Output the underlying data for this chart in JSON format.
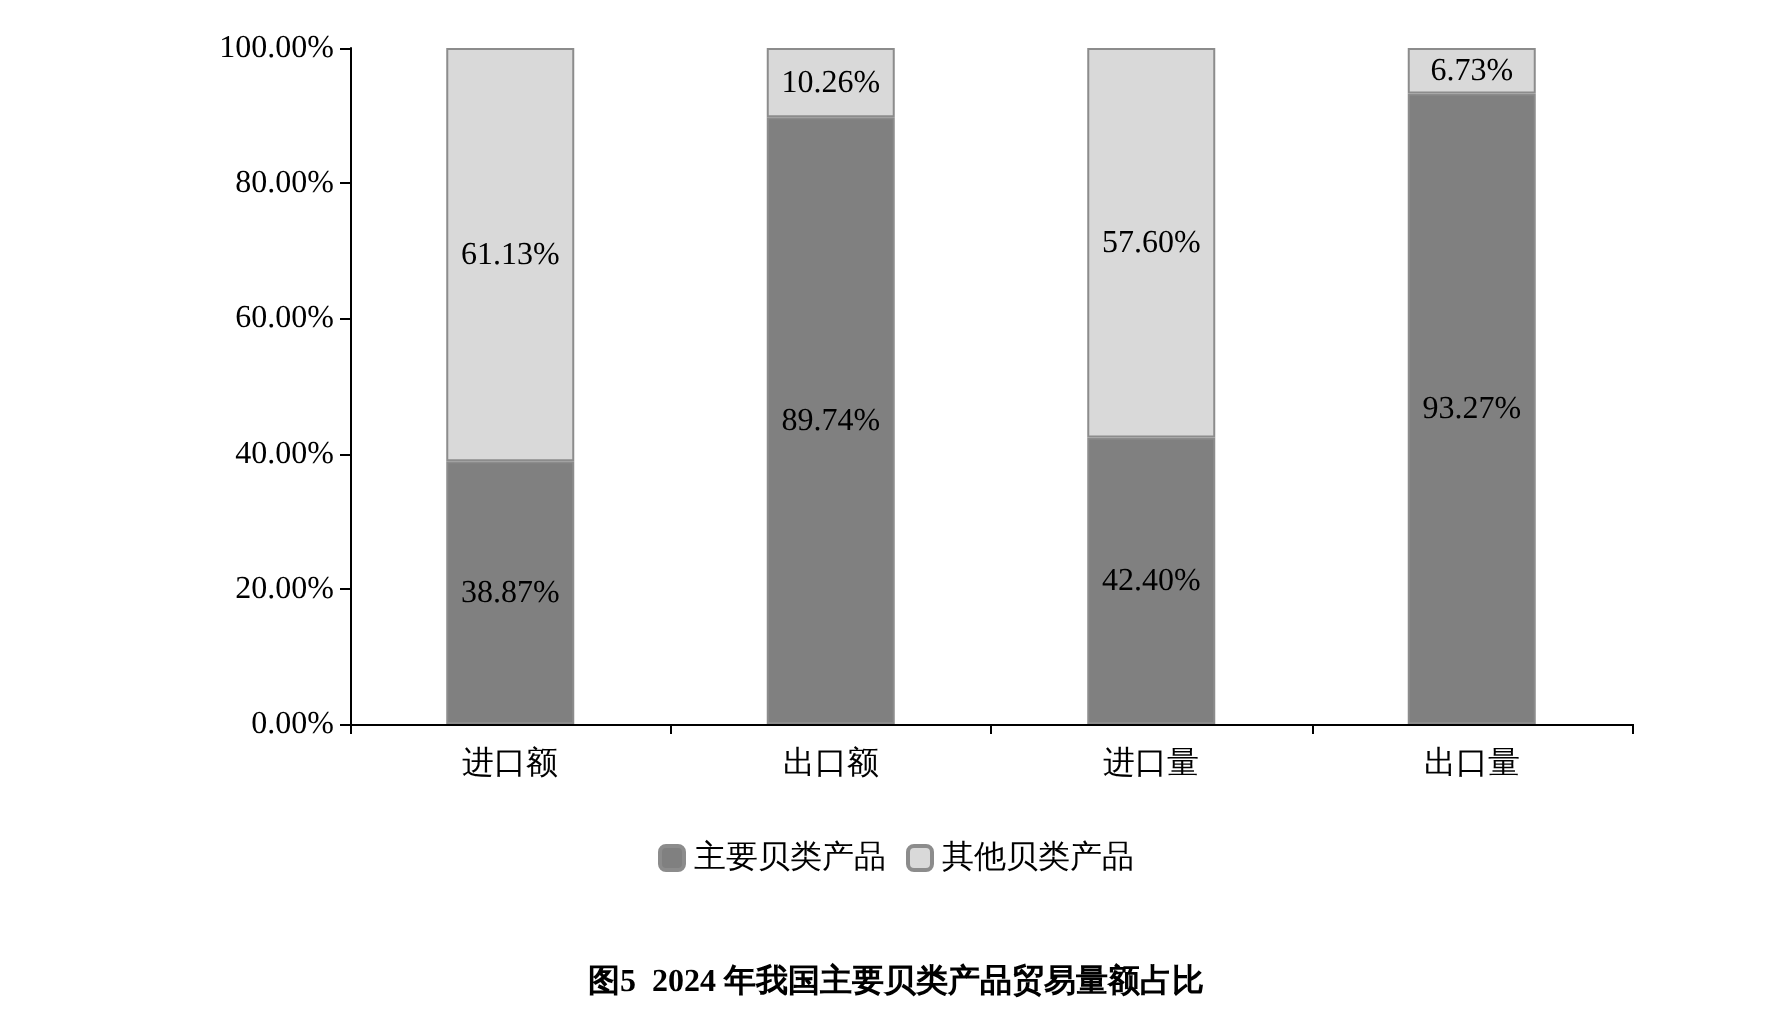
{
  "chart_data": {
    "type": "bar",
    "title": "图5  2024 年我国主要贝类产品贸易量额占比",
    "categories": [
      "进口额",
      "出口额",
      "进口量",
      "出口量"
    ],
    "stacked": true,
    "series": [
      {
        "name": "主要贝类产品",
        "color": "#808080",
        "values": [
          38.87,
          89.74,
          42.4,
          93.27
        ],
        "value_labels": [
          "38.87%",
          "89.74%",
          "42.40%",
          "93.27%"
        ]
      },
      {
        "name": "其他贝类产品",
        "color": "#d9d9d9",
        "values": [
          61.13,
          10.26,
          57.6,
          6.73
        ],
        "value_labels": [
          "61.13%",
          "10.26%",
          "57.60%",
          "6.73%"
        ]
      }
    ],
    "ylim": [
      0,
      100
    ],
    "yticks": [
      {
        "value": 0,
        "label": "0.00%"
      },
      {
        "value": 20,
        "label": "20.00%"
      },
      {
        "value": 40,
        "label": "40.00%"
      },
      {
        "value": 60,
        "label": "60.00%"
      },
      {
        "value": 80,
        "label": "80.00%"
      },
      {
        "value": 100,
        "label": "100.00%"
      }
    ],
    "grid": false,
    "legend": "bottom"
  }
}
